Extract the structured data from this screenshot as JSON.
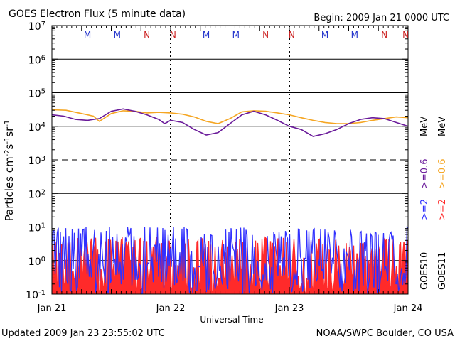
{
  "header": {
    "title": "GOES Electron Flux (5 minute data)",
    "begin": "Begin: 2009 Jan 21 0000 UTC"
  },
  "footer": {
    "updated": "Updated 2009 Jan 23 23:55:02 UTC",
    "credit": "NOAA/SWPC Boulder, CO USA"
  },
  "colors": {
    "goes10_ge2": "#3030ff",
    "goes10_ge06": "#6a1b9a",
    "goes11_ge2": "#ff2a2a",
    "goes11_ge06": "#f5a623",
    "marker_m": "#2233cc",
    "marker_n": "#cc2222"
  },
  "chart_data": {
    "type": "line",
    "title": "GOES Electron Flux (5 minute data)",
    "xlabel": "Universal Time",
    "ylabel": "Particles cm-2s-1sr-1",
    "yscale": "log",
    "ylim": [
      0.1,
      10000000
    ],
    "xlim_days": [
      0,
      3
    ],
    "x_tick_labels": [
      "Jan 21",
      "Jan 22",
      "Jan 23",
      "Jan 24"
    ],
    "y_tick_labels": [
      {
        "base": "10",
        "exp": "-1"
      },
      {
        "base": "10",
        "exp": "0"
      },
      {
        "base": "10",
        "exp": "1"
      },
      {
        "base": "10",
        "exp": "2"
      },
      {
        "base": "10",
        "exp": "3"
      },
      {
        "base": "10",
        "exp": "4"
      },
      {
        "base": "10",
        "exp": "5"
      },
      {
        "base": "10",
        "exp": "6"
      },
      {
        "base": "10",
        "exp": "7"
      }
    ],
    "grid": "horizontal lines at each decade (dashed at 10^3)",
    "markers": [
      {
        "label": "M",
        "day": 0.3
      },
      {
        "label": "M",
        "day": 0.55
      },
      {
        "label": "N",
        "day": 0.8
      },
      {
        "label": "N",
        "day": 1.02
      },
      {
        "label": "M",
        "day": 1.3
      },
      {
        "label": "M",
        "day": 1.55
      },
      {
        "label": "N",
        "day": 1.8
      },
      {
        "label": "N",
        "day": 2.02
      },
      {
        "label": "M",
        "day": 2.3
      },
      {
        "label": "M",
        "day": 2.55
      },
      {
        "label": "N",
        "day": 2.8
      },
      {
        "label": "N",
        "day": 3.02
      }
    ],
    "legend": {
      "goes10_label": "GOES10",
      "goes11_label": "GOES11",
      "ge2": ">=2",
      "ge06": ">=0.6",
      "unit": "MeV"
    },
    "series": [
      {
        "name": ">=0.6 MeV",
        "satellite": "GOES11",
        "x": [
          0,
          0.12,
          0.25,
          0.35,
          0.4,
          0.5,
          0.6,
          0.7,
          0.8,
          0.9,
          1.0,
          1.1,
          1.2,
          1.3,
          1.4,
          1.5,
          1.6,
          1.7,
          1.8,
          1.9,
          2.0,
          2.1,
          2.2,
          2.3,
          2.4,
          2.5,
          2.6,
          2.7,
          2.8,
          2.9,
          3.0
        ],
        "values": [
          31000,
          30000,
          24000,
          20000,
          14000,
          24000,
          29000,
          28000,
          25000,
          26000,
          25000,
          23000,
          19000,
          14000,
          12000,
          17000,
          27000,
          29000,
          28000,
          25000,
          22000,
          18000,
          15000,
          13000,
          12000,
          12000,
          13000,
          15000,
          17000,
          19000,
          18000
        ]
      },
      {
        "name": ">=0.6 MeV",
        "satellite": "GOES10",
        "x": [
          0,
          0.1,
          0.2,
          0.3,
          0.4,
          0.5,
          0.6,
          0.7,
          0.8,
          0.9,
          0.95,
          1.0,
          1.1,
          1.2,
          1.3,
          1.4,
          1.5,
          1.6,
          1.7,
          1.8,
          1.9,
          2.0,
          2.1,
          2.2,
          2.3,
          2.4,
          2.5,
          2.6,
          2.7,
          2.8,
          2.9,
          3.0
        ],
        "values": [
          22000,
          20000,
          16000,
          15000,
          17000,
          28000,
          33000,
          28000,
          22000,
          16000,
          12000,
          15000,
          13000,
          8000,
          5500,
          6500,
          12000,
          22000,
          28000,
          22000,
          15000,
          10000,
          8000,
          5000,
          6000,
          8000,
          12000,
          16000,
          18000,
          17000,
          13000,
          10000
        ]
      },
      {
        "name": ">=2 MeV",
        "satellite": "GOES10",
        "description_range": [
          0.1,
          10
        ],
        "typical_values": [
          2,
          5,
          0.3,
          8,
          1,
          0.15,
          4,
          9,
          0.5,
          3
        ]
      },
      {
        "name": ">=2 MeV",
        "satellite": "GOES11",
        "description_range": [
          0.1,
          5
        ],
        "typical_values": [
          1.5,
          4,
          0.2,
          3,
          0.8,
          0.12,
          2.5,
          4.5,
          0.4,
          2
        ]
      }
    ]
  }
}
